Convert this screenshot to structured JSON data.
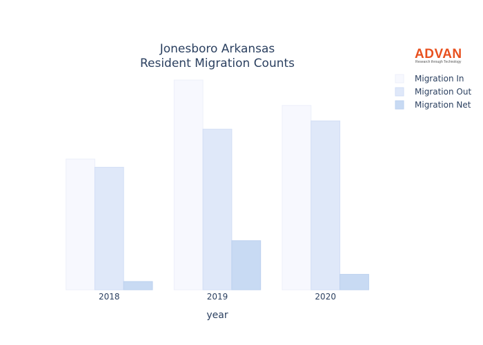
{
  "logo": {
    "name": "ADVAN",
    "tagline": "Research through Technology",
    "color": "#e8501e"
  },
  "chart_data": {
    "type": "bar",
    "title_lines": [
      "Jonesboro Arkansas",
      "Resident Migration Counts"
    ],
    "xlabel": "year",
    "ylabel": "",
    "categories": [
      "2018",
      "2019",
      "2020"
    ],
    "ylim": [
      0,
      1900
    ],
    "grid": false,
    "legend_position": "top-right",
    "series": [
      {
        "name": "Migration In",
        "values": [
          1185,
          1900,
          1670
        ],
        "color": "#f7f8fe",
        "stroke": "#eceffa"
      },
      {
        "name": "Migration Out",
        "values": [
          1110,
          1455,
          1530
        ],
        "color": "#dfe8f9",
        "stroke": "#d2def5"
      },
      {
        "name": "Migration Net",
        "values": [
          75,
          445,
          140
        ],
        "color": "#c8daf3",
        "stroke": "#bcd1ef"
      }
    ]
  }
}
